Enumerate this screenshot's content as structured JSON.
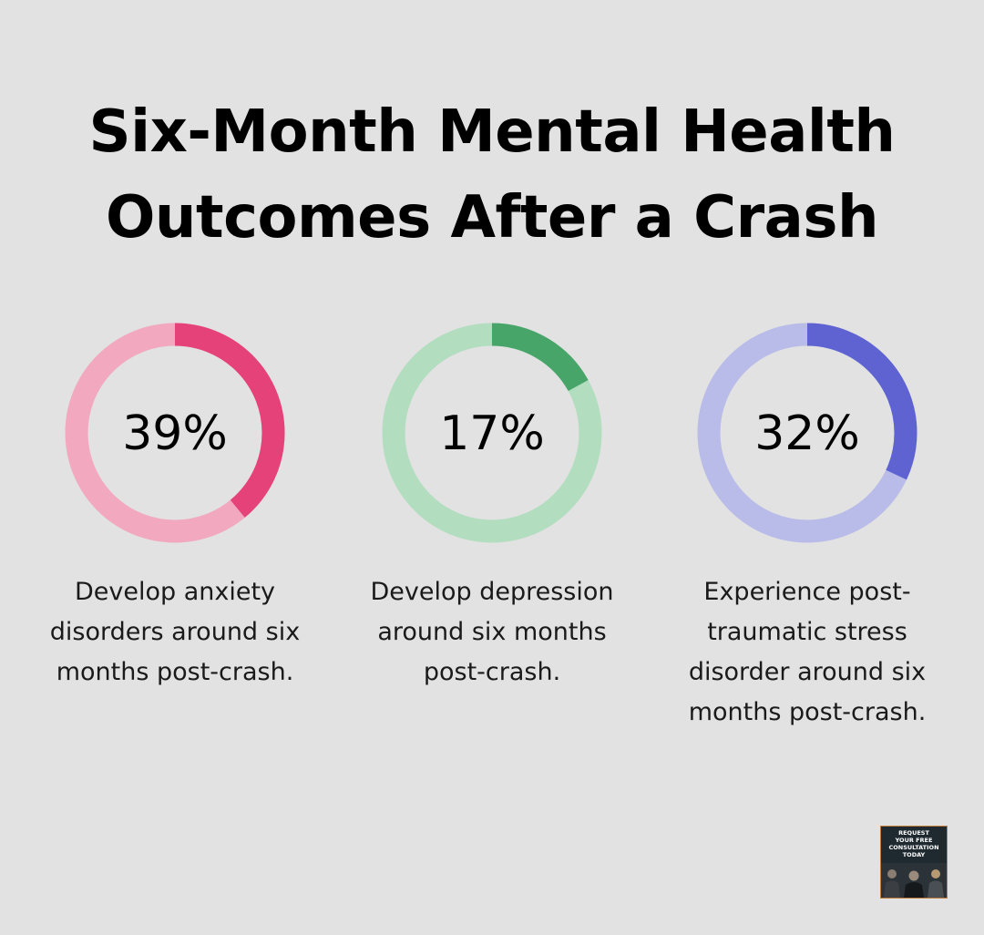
{
  "title": {
    "line1": "Six-Month Mental Health",
    "line2": "Outcomes After a Crash"
  },
  "chart_data": {
    "type": "pie",
    "variant": "donut",
    "title": "Six-Month Mental Health Outcomes After a Crash",
    "items": [
      {
        "value": 39,
        "label": "39%",
        "description": "Develop anxiety disorders around six months post-crash.",
        "desc_lines": [
          "Develop anxiety",
          "disorders around six",
          "months post-crash."
        ],
        "color": "#e5427a",
        "track_color": "#f2a9c0"
      },
      {
        "value": 17,
        "label": "17%",
        "description": "Develop depression around six months post-crash.",
        "desc_lines": [
          "Develop depression",
          "around six months",
          "post-crash."
        ],
        "color": "#48a56a",
        "track_color": "#b2ddbf"
      },
      {
        "value": 32,
        "label": "32%",
        "description": "Experience post-traumatic stress disorder around six months post-crash.",
        "desc_lines": [
          "Experience post-",
          "traumatic stress",
          "disorder around six",
          "months post-crash."
        ],
        "color": "#5f63d2",
        "track_color": "#b9bbe9"
      }
    ]
  },
  "badge": {
    "text": "REQUEST\nYOUR FREE\nCONSULTATION\nTODAY",
    "image": "team-photo-thumbnail"
  }
}
